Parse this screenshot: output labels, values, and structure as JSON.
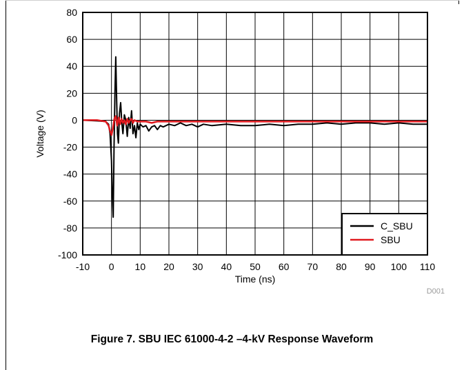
{
  "figure": {
    "caption": "Figure 7. SBU IEC 61000-4-2 –4-kV Response Waveform",
    "tag": "D001"
  },
  "colors": {
    "c_sbu": "#000000",
    "sbu": "#e0191e",
    "grid": "#000000"
  },
  "chart_data": {
    "type": "line",
    "title": "",
    "xlabel": "Time (ns)",
    "ylabel": "Voltage (V)",
    "xlim": [
      -10,
      110
    ],
    "ylim": [
      -100,
      80
    ],
    "xticks": [
      -10,
      0,
      10,
      20,
      30,
      40,
      50,
      60,
      70,
      80,
      90,
      100,
      110
    ],
    "yticks": [
      80,
      60,
      40,
      20,
      0,
      -20,
      -40,
      -60,
      -80,
      -100
    ],
    "grid": true,
    "legend_position": "bottom-right",
    "series": [
      {
        "name": "C_SBU",
        "x": [
          -10,
          -5,
          -2,
          -1,
          -0.5,
          0,
          0.3,
          0.6,
          0.9,
          1.2,
          1.5,
          1.8,
          2.1,
          2.4,
          2.8,
          3.2,
          3.6,
          4.0,
          4.5,
          5.0,
          5.5,
          6.0,
          6.5,
          7.0,
          7.5,
          8.0,
          8.5,
          9.0,
          9.5,
          10,
          11,
          12,
          13,
          14,
          15,
          16,
          17,
          18,
          20,
          22,
          24,
          26,
          28,
          30,
          32,
          35,
          40,
          45,
          50,
          55,
          60,
          65,
          70,
          75,
          80,
          85,
          90,
          95,
          100,
          105,
          110
        ],
        "y": [
          0,
          -0.5,
          -1,
          -3,
          -10,
          -30,
          -55,
          -72,
          -20,
          20,
          47,
          15,
          -10,
          -17,
          5,
          13,
          -2,
          -10,
          4,
          0,
          -12,
          2,
          -6,
          7,
          -10,
          -4,
          -13,
          -2,
          -7,
          -3,
          -5,
          -4,
          -8,
          -5,
          -4,
          -7,
          -4,
          -5,
          -3,
          -4,
          -2,
          -4,
          -3,
          -5,
          -3,
          -4,
          -3,
          -4,
          -4,
          -3,
          -4,
          -3,
          -3,
          -2,
          -3,
          -2,
          -2,
          -3,
          -2,
          -3,
          -3
        ]
      },
      {
        "name": "SBU",
        "x": [
          -10,
          -5,
          -2,
          -1,
          -0.5,
          0,
          0.5,
          1,
          1.5,
          2,
          2.5,
          3,
          3.5,
          4,
          4.5,
          5,
          5.5,
          6,
          6.5,
          7,
          7.5,
          8,
          9,
          10,
          12,
          14,
          16,
          20,
          30,
          40,
          50,
          60,
          70,
          80,
          90,
          100,
          110
        ],
        "y": [
          0,
          0,
          -1,
          -4,
          -8,
          -11,
          -6,
          1,
          3,
          -4,
          2,
          -3,
          1,
          -2,
          0,
          -3,
          1,
          -2,
          0,
          1,
          -2,
          0,
          -1,
          -1,
          -1,
          -2,
          -1,
          -1,
          -1,
          -1,
          -1,
          -1,
          -1,
          -1,
          -1,
          -1,
          -1
        ]
      }
    ]
  }
}
